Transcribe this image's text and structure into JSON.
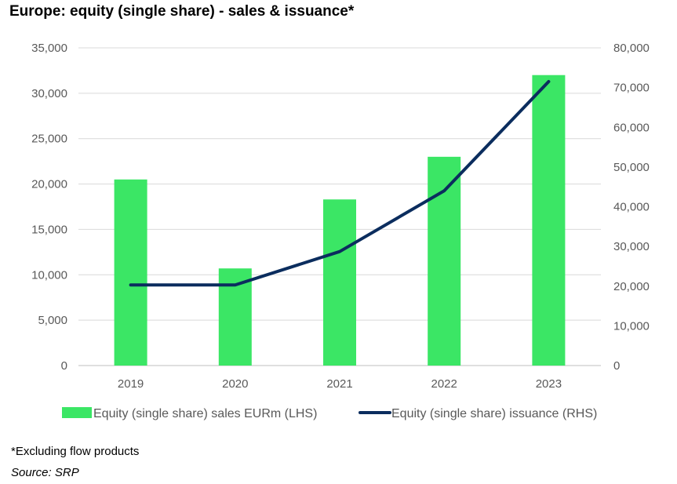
{
  "title": "Europe: equity (single share) - sales & issuance*",
  "footnote": "*Excluding flow products",
  "source": "Source: SRP",
  "chart_data": {
    "type": "bar+line",
    "categories": [
      "2019",
      "2020",
      "2021",
      "2022",
      "2023"
    ],
    "series": [
      {
        "name": "Equity (single share) sales EURm (LHS)",
        "type": "bar",
        "axis": "left",
        "color": "#3be665",
        "values": [
          20500,
          10700,
          18300,
          23000,
          32000
        ]
      },
      {
        "name": "Equity (single share) issuance (RHS)",
        "type": "line",
        "axis": "right",
        "color": "#0b2d5e",
        "values": [
          20300,
          20300,
          28700,
          44000,
          71500
        ]
      }
    ],
    "y_left": {
      "ylim": [
        0,
        35000
      ],
      "ticks": [
        "0",
        "5,000",
        "10,000",
        "15,000",
        "20,000",
        "25,000",
        "30,000",
        "35,000"
      ]
    },
    "y_right": {
      "ylim": [
        0,
        80000
      ],
      "ticks": [
        "0",
        "10,000",
        "20,000",
        "30,000",
        "40,000",
        "50,000",
        "60,000",
        "70,000",
        "80,000"
      ]
    },
    "grid": true,
    "legend": "bottom"
  }
}
